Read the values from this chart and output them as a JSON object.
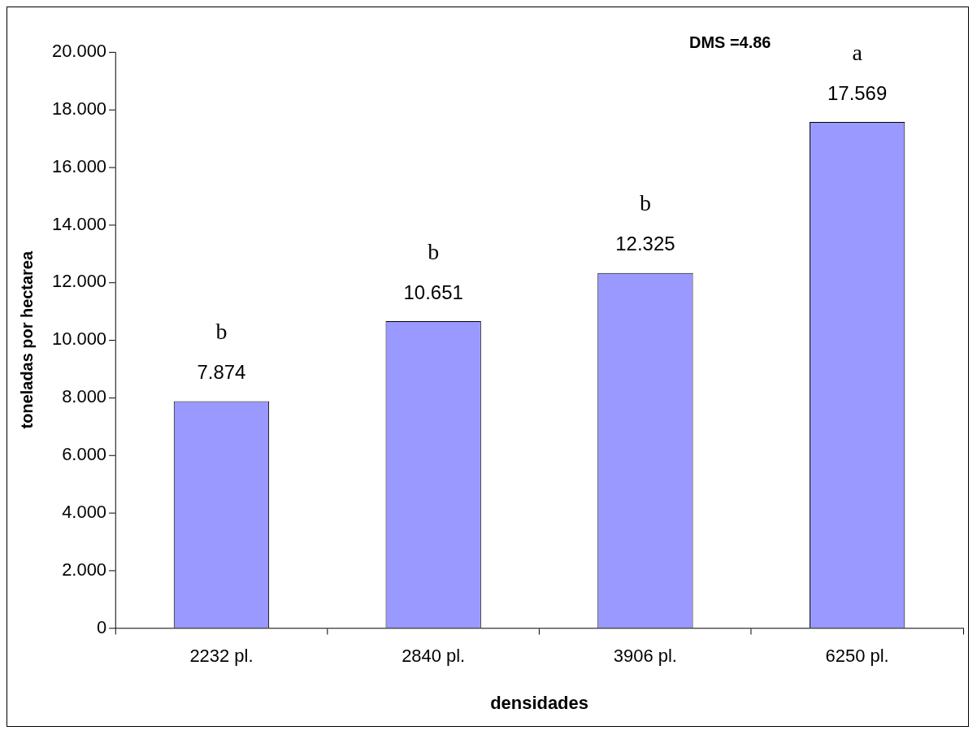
{
  "chart_data": {
    "type": "bar",
    "xlabel": "densidades",
    "ylabel": "toneladas por hectarea",
    "categories": [
      "2232 pl.",
      "2840 pl.",
      "3906 pl.",
      "6250 pl."
    ],
    "values": [
      7.874,
      10.651,
      12.325,
      17.569
    ],
    "color": "#9999ff",
    "ylim": [
      0,
      20
    ],
    "yticks": [
      0,
      {
        "value": 2,
        "label": "2.000"
      },
      {
        "value": 4,
        "label": "4.000"
      },
      {
        "value": 6,
        "label": "6.000"
      },
      {
        "value": 8,
        "label": "8.000"
      },
      {
        "value": 10,
        "label": "10.000"
      },
      {
        "value": 12,
        "label": "12.000"
      },
      {
        "value": 14,
        "label": "14.000"
      },
      {
        "value": 16,
        "label": "16.000"
      },
      {
        "value": 18,
        "label": "18.000"
      },
      {
        "value": 20,
        "label": "20.000"
      }
    ],
    "data_labels": true,
    "grid": false,
    "legend": false,
    "annotations": [
      "DMS =4.86",
      {
        "text": "b",
        "x": "2232 pl.",
        "y": 7.874
      },
      {
        "text": "b",
        "x": "2840 pl.",
        "y": 10.651
      },
      {
        "text": "b",
        "x": "3906 pl.",
        "y": 12.325
      },
      {
        "text": "a",
        "x": "6250 pl.",
        "y": 17.569
      }
    ]
  }
}
